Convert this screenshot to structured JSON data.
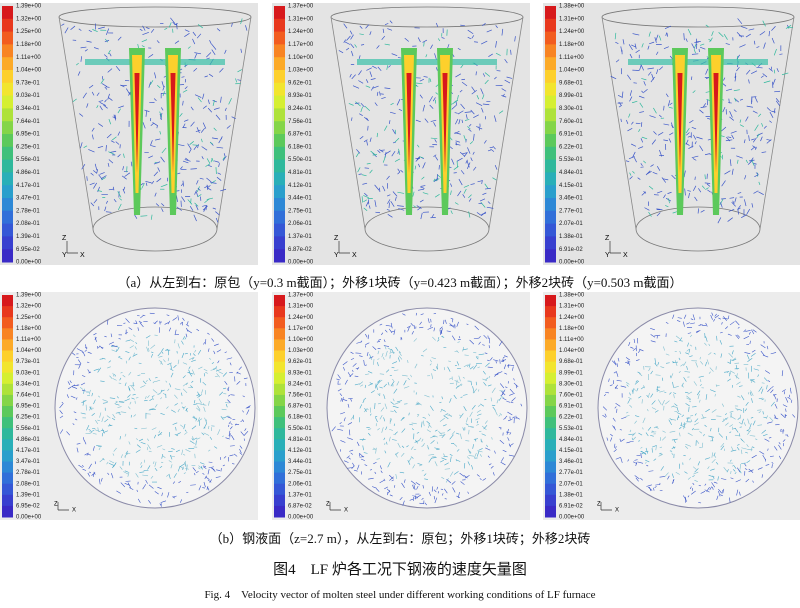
{
  "panels": [
    {
      "colorbar": [
        "1.39e+00",
        "1.32e+00",
        "1.25e+00",
        "1.18e+00",
        "1.11e+00",
        "1.04e+00",
        "9.73e-01",
        "9.03e-01",
        "8.34e-01",
        "7.64e-01",
        "6.95e-01",
        "6.25e-01",
        "5.56e-01",
        "4.86e-01",
        "4.17e-01",
        "3.47e-01",
        "2.78e-01",
        "2.08e-01",
        "1.39e-01",
        "6.95e-02",
        "0.00e+00"
      ],
      "axes": [
        "Z",
        "Y",
        "X"
      ]
    },
    {
      "colorbar": [
        "1.37e+00",
        "1.31e+00",
        "1.24e+00",
        "1.17e+00",
        "1.10e+00",
        "1.03e+00",
        "9.62e-01",
        "8.93e-01",
        "8.24e-01",
        "7.56e-01",
        "6.87e-01",
        "6.18e-01",
        "5.50e-01",
        "4.81e-01",
        "4.12e-01",
        "3.44e-01",
        "2.75e-01",
        "2.06e-01",
        "1.37e-01",
        "6.87e-02",
        "0.00e+00"
      ],
      "axes": [
        "Z",
        "Y",
        "X"
      ]
    },
    {
      "colorbar": [
        "1.38e+00",
        "1.31e+00",
        "1.24e+00",
        "1.18e+00",
        "1.11e+00",
        "1.04e+00",
        "9.68e-01",
        "8.99e-01",
        "8.30e-01",
        "7.60e-01",
        "6.91e-01",
        "6.22e-01",
        "5.53e-01",
        "4.84e-01",
        "4.15e-01",
        "3.46e-01",
        "2.77e-01",
        "2.07e-01",
        "1.38e-01",
        "6.91e-02",
        "0.00e+00"
      ],
      "axes": [
        "Z",
        "Y",
        "X"
      ]
    },
    {
      "colorbar": [
        "1.39e+00",
        "1.32e+00",
        "1.25e+00",
        "1.18e+00",
        "1.11e+00",
        "1.04e+00",
        "9.73e-01",
        "9.03e-01",
        "8.34e-01",
        "7.64e-01",
        "6.95e-01",
        "6.25e-01",
        "5.56e-01",
        "4.86e-01",
        "4.17e-01",
        "3.47e-01",
        "2.78e-01",
        "2.08e-01",
        "1.39e-01",
        "6.95e-02",
        "0.00e+00"
      ],
      "axes": [
        "Z",
        "X"
      ]
    },
    {
      "colorbar": [
        "1.37e+00",
        "1.31e+00",
        "1.24e+00",
        "1.17e+00",
        "1.10e+00",
        "1.03e+00",
        "9.62e-01",
        "8.93e-01",
        "8.24e-01",
        "7.56e-01",
        "6.87e-01",
        "6.18e-01",
        "5.50e-01",
        "4.81e-01",
        "4.12e-01",
        "3.44e-01",
        "2.75e-01",
        "2.06e-01",
        "1.37e-01",
        "6.87e-02",
        "0.00e+00"
      ],
      "axes": [
        "Z",
        "X"
      ]
    },
    {
      "colorbar": [
        "1.38e+00",
        "1.31e+00",
        "1.24e+00",
        "1.18e+00",
        "1.11e+00",
        "1.04e+00",
        "9.68e-01",
        "8.99e-01",
        "8.30e-01",
        "7.60e-01",
        "6.91e-01",
        "6.22e-01",
        "5.53e-01",
        "4.84e-01",
        "4.15e-01",
        "3.46e-01",
        "2.77e-01",
        "2.07e-01",
        "1.38e-01",
        "6.91e-02",
        "0.00e+00"
      ],
      "axes": [
        "Z",
        "X"
      ]
    }
  ],
  "captions": {
    "a": "（a）从左到右：原包（y=0.3 m截面）；外移1块砖（y=0.423 m截面）；外移2块砖（y=0.503 m截面）",
    "b": "（b）钢液面（z=2.7 m），从左到右：原包；外移1块砖；外移2块砖",
    "figure_cn": "图4　LF 炉各工况下钢液的速度矢量图",
    "figure_en": "Fig. 4　Velocity vector of molten steel under different working conditions of LF furnace"
  }
}
